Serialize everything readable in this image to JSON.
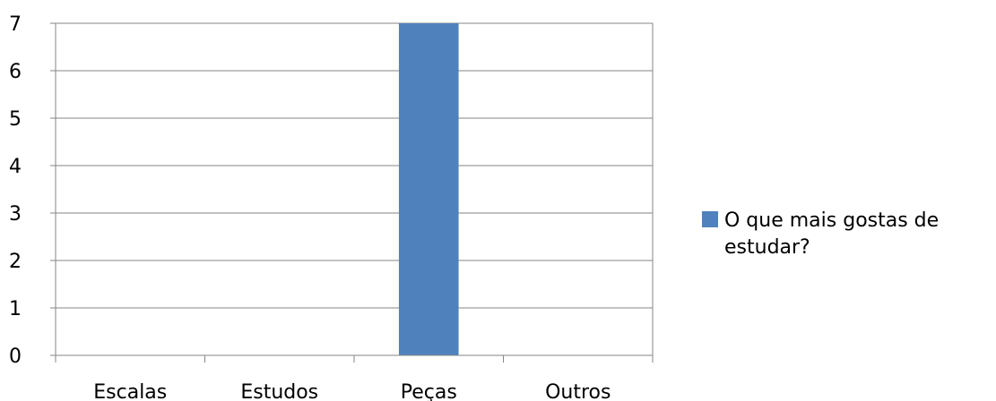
{
  "chart_data": {
    "type": "bar",
    "categories": [
      "Escalas",
      "Estudos",
      "Peças",
      "Outros"
    ],
    "series": [
      {
        "name": "O que mais gostas de estudar?",
        "values": [
          0,
          0,
          7,
          0
        ],
        "color": "#4F81BD"
      }
    ],
    "ylim": [
      0,
      7
    ],
    "yticks": [
      0,
      1,
      2,
      3,
      4,
      5,
      6,
      7
    ],
    "grid": true,
    "legend_position": "right",
    "legend_lines": [
      "O que mais gostas de",
      "estudar?"
    ]
  }
}
